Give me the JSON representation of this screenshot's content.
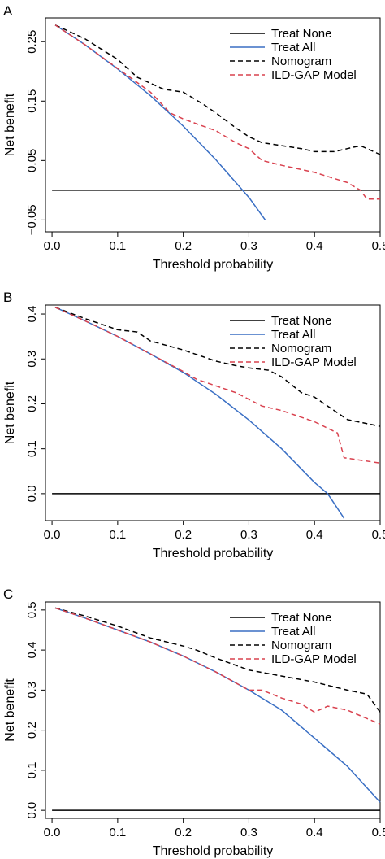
{
  "chart_data": [
    {
      "type": "line",
      "panel_label": "A",
      "xlabel": "Threshold probability",
      "ylabel": "Net benefit",
      "xlim": [
        -0.01,
        0.5
      ],
      "ylim": [
        -0.07,
        0.29
      ],
      "xticks": [
        0.0,
        0.1,
        0.2,
        0.3,
        0.4,
        0.5
      ],
      "xtick_labels": [
        "0.0",
        "0.1",
        "0.2",
        "0.3",
        "0.4",
        "0.5"
      ],
      "yticks": [
        -0.05,
        0.05,
        0.15,
        0.25
      ],
      "ytick_labels": [
        "−0.05",
        "0.05",
        "0.15",
        "0.25"
      ],
      "legend_position": "top-right",
      "series": [
        {
          "name": "Treat None",
          "color": "#000000",
          "dash": "solid",
          "x": [
            0.0,
            0.5
          ],
          "y": [
            0.0,
            0.0
          ]
        },
        {
          "name": "Treat All",
          "color": "#3a6fc4",
          "dash": "solid",
          "x": [
            0.005,
            0.05,
            0.1,
            0.15,
            0.2,
            0.25,
            0.3,
            0.325
          ],
          "y": [
            0.278,
            0.245,
            0.204,
            0.159,
            0.108,
            0.051,
            -0.012,
            -0.05
          ]
        },
        {
          "name": "Nomogram",
          "color": "#000000",
          "dash": "dashed",
          "x": [
            0.005,
            0.05,
            0.1,
            0.13,
            0.15,
            0.17,
            0.2,
            0.23,
            0.25,
            0.28,
            0.3,
            0.32,
            0.35,
            0.38,
            0.4,
            0.43,
            0.45,
            0.47,
            0.5
          ],
          "y": [
            0.278,
            0.255,
            0.22,
            0.19,
            0.18,
            0.17,
            0.165,
            0.145,
            0.13,
            0.105,
            0.09,
            0.08,
            0.075,
            0.07,
            0.065,
            0.065,
            0.07,
            0.075,
            0.06
          ]
        },
        {
          "name": "ILD-GAP Model",
          "color": "#d9424f",
          "dash": "dashed",
          "x": [
            0.005,
            0.05,
            0.1,
            0.15,
            0.18,
            0.2,
            0.25,
            0.28,
            0.3,
            0.32,
            0.35,
            0.4,
            0.45,
            0.47,
            0.48,
            0.5
          ],
          "y": [
            0.278,
            0.245,
            0.205,
            0.165,
            0.13,
            0.12,
            0.1,
            0.08,
            0.07,
            0.05,
            0.042,
            0.03,
            0.013,
            0.0,
            -0.015,
            -0.015
          ]
        }
      ]
    },
    {
      "type": "line",
      "panel_label": "B",
      "xlabel": "Threshold probability",
      "ylabel": "Net benefit",
      "xlim": [
        -0.01,
        0.5
      ],
      "ylim": [
        -0.06,
        0.42
      ],
      "xticks": [
        0.0,
        0.1,
        0.2,
        0.3,
        0.4,
        0.5
      ],
      "xtick_labels": [
        "0.0",
        "0.1",
        "0.2",
        "0.3",
        "0.4",
        "0.5"
      ],
      "yticks": [
        0.0,
        0.1,
        0.2,
        0.3,
        0.4
      ],
      "ytick_labels": [
        "0.0",
        "0.1",
        "0.2",
        "0.3",
        "0.4"
      ],
      "legend_position": "top-right",
      "series": [
        {
          "name": "Treat None",
          "color": "#000000",
          "dash": "solid",
          "x": [
            0.0,
            0.5
          ],
          "y": [
            0.0,
            0.0
          ]
        },
        {
          "name": "Treat All",
          "color": "#3a6fc4",
          "dash": "solid",
          "x": [
            0.005,
            0.05,
            0.1,
            0.15,
            0.2,
            0.25,
            0.3,
            0.35,
            0.4,
            0.42,
            0.445
          ],
          "y": [
            0.415,
            0.385,
            0.35,
            0.311,
            0.27,
            0.221,
            0.164,
            0.1,
            0.025,
            0.0,
            -0.055
          ]
        },
        {
          "name": "Nomogram",
          "color": "#000000",
          "dash": "dashed",
          "x": [
            0.005,
            0.05,
            0.1,
            0.13,
            0.15,
            0.2,
            0.25,
            0.28,
            0.3,
            0.33,
            0.35,
            0.38,
            0.4,
            0.42,
            0.45,
            0.5
          ],
          "y": [
            0.415,
            0.39,
            0.365,
            0.36,
            0.34,
            0.32,
            0.295,
            0.285,
            0.28,
            0.275,
            0.26,
            0.225,
            0.215,
            0.195,
            0.165,
            0.15
          ]
        },
        {
          "name": "ILD-GAP Model",
          "color": "#d9424f",
          "dash": "dashed",
          "x": [
            0.005,
            0.05,
            0.1,
            0.15,
            0.2,
            0.22,
            0.25,
            0.28,
            0.3,
            0.32,
            0.35,
            0.4,
            0.435,
            0.445,
            0.5
          ],
          "y": [
            0.415,
            0.385,
            0.35,
            0.311,
            0.272,
            0.255,
            0.24,
            0.225,
            0.21,
            0.195,
            0.185,
            0.16,
            0.135,
            0.08,
            0.068
          ]
        }
      ]
    },
    {
      "type": "line",
      "panel_label": "C",
      "xlabel": "Threshold probability",
      "ylabel": "Net benefit",
      "xlim": [
        -0.01,
        0.5
      ],
      "ylim": [
        -0.02,
        0.52
      ],
      "xticks": [
        0.0,
        0.1,
        0.2,
        0.3,
        0.4,
        0.5
      ],
      "xtick_labels": [
        "0.0",
        "0.1",
        "0.2",
        "0.3",
        "0.4",
        "0.5"
      ],
      "yticks": [
        0.0,
        0.1,
        0.2,
        0.3,
        0.4,
        0.5
      ],
      "ytick_labels": [
        "0.0",
        "0.1",
        "0.2",
        "0.3",
        "0.4",
        "0.5"
      ],
      "legend_position": "top-right",
      "series": [
        {
          "name": "Treat None",
          "color": "#000000",
          "dash": "solid",
          "x": [
            0.0,
            0.5
          ],
          "y": [
            0.0,
            0.0
          ]
        },
        {
          "name": "Treat All",
          "color": "#3a6fc4",
          "dash": "solid",
          "x": [
            0.005,
            0.05,
            0.1,
            0.15,
            0.2,
            0.25,
            0.3,
            0.35,
            0.4,
            0.45,
            0.5
          ],
          "y": [
            0.505,
            0.48,
            0.45,
            0.42,
            0.385,
            0.345,
            0.3,
            0.25,
            0.18,
            0.11,
            0.02
          ]
        },
        {
          "name": "Nomogram",
          "color": "#000000",
          "dash": "dashed",
          "x": [
            0.005,
            0.05,
            0.1,
            0.15,
            0.2,
            0.22,
            0.25,
            0.3,
            0.35,
            0.4,
            0.45,
            0.48,
            0.5
          ],
          "y": [
            0.505,
            0.485,
            0.46,
            0.43,
            0.41,
            0.4,
            0.38,
            0.35,
            0.335,
            0.32,
            0.3,
            0.29,
            0.245
          ]
        },
        {
          "name": "ILD-GAP Model",
          "color": "#d9424f",
          "dash": "dashed",
          "x": [
            0.005,
            0.05,
            0.1,
            0.15,
            0.2,
            0.25,
            0.3,
            0.32,
            0.35,
            0.38,
            0.4,
            0.42,
            0.45,
            0.5
          ],
          "y": [
            0.505,
            0.48,
            0.45,
            0.42,
            0.385,
            0.345,
            0.3,
            0.3,
            0.28,
            0.265,
            0.245,
            0.26,
            0.25,
            0.215
          ]
        }
      ]
    }
  ]
}
